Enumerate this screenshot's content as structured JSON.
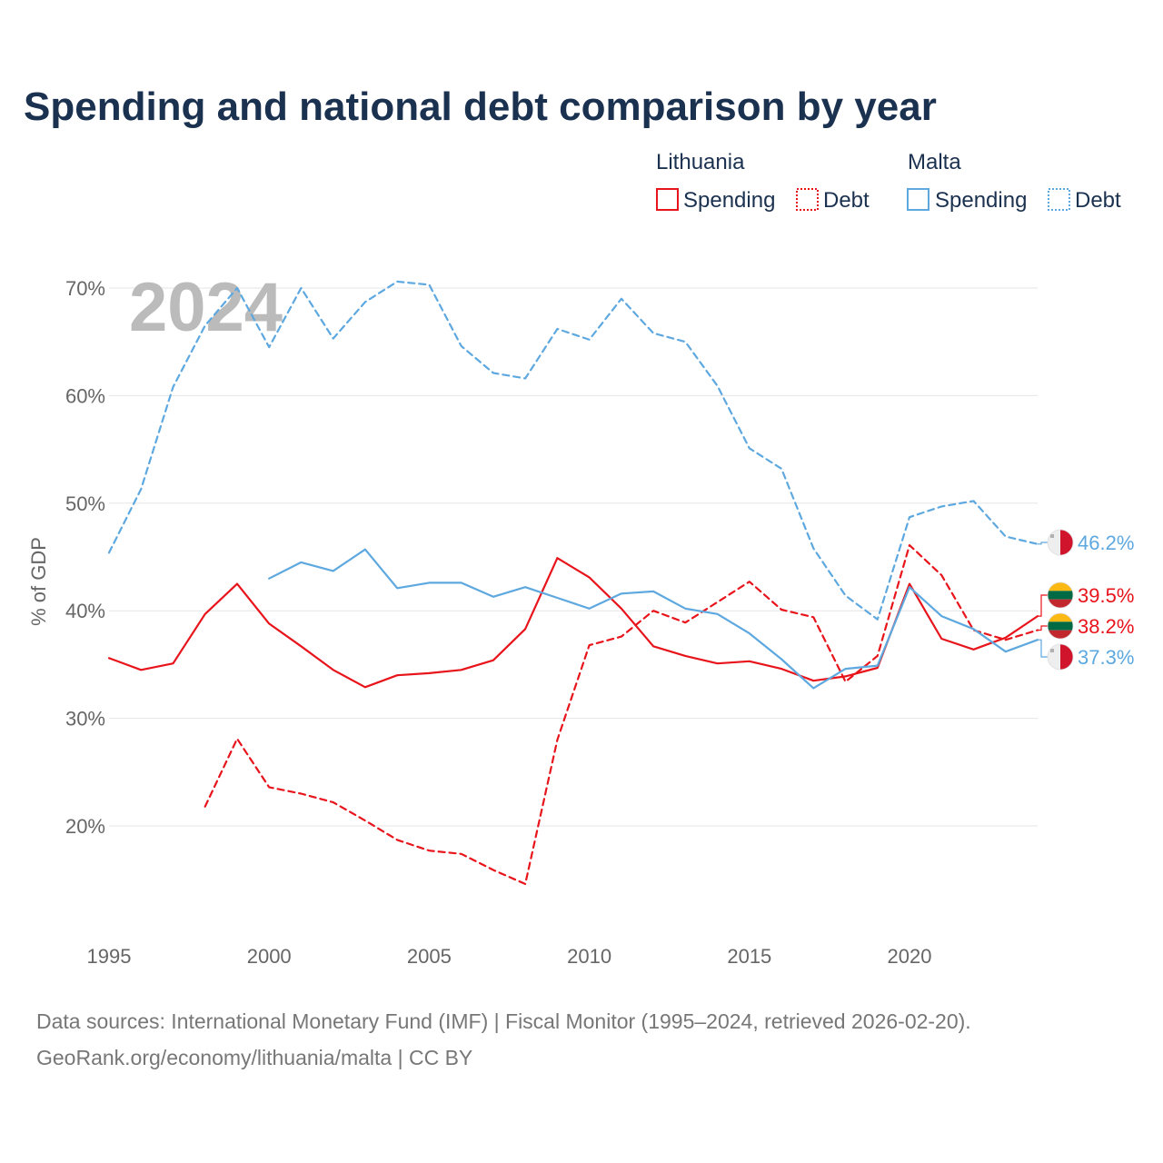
{
  "chart_data": {
    "type": "line",
    "title": "Spending and national debt comparison by year",
    "ylabel": "% of GDP",
    "xlabel": "",
    "year_label": "2024",
    "xlim": [
      1995,
      2024
    ],
    "ylim": [
      10,
      72
    ],
    "y_ticks": [
      20,
      30,
      40,
      50,
      60,
      70
    ],
    "y_tick_labels": [
      "20%",
      "30%",
      "40%",
      "50%",
      "60%",
      "70%"
    ],
    "x_ticks": [
      1995,
      2000,
      2005,
      2010,
      2015,
      2020
    ],
    "x_tick_labels": [
      "1995",
      "2000",
      "2005",
      "2010",
      "2015",
      "2020"
    ],
    "grid": true,
    "legend_placement": "top-right",
    "legend": {
      "groups": [
        {
          "name": "Lithuania",
          "items": [
            "Spending",
            "Debt"
          ]
        },
        {
          "name": "Malta",
          "items": [
            "Spending",
            "Debt"
          ]
        }
      ]
    },
    "series": [
      {
        "key": "lt-spending",
        "country": "Lithuania",
        "name": "Spending",
        "color": "#e8141b",
        "dashed": false,
        "x": [
          1995,
          1996,
          1997,
          1998,
          1999,
          2000,
          2001,
          2002,
          2003,
          2004,
          2005,
          2006,
          2007,
          2008,
          2009,
          2010,
          2011,
          2012,
          2013,
          2014,
          2015,
          2016,
          2017,
          2018,
          2019,
          2020,
          2021,
          2022,
          2023,
          2024
        ],
        "values": [
          35.6,
          34.5,
          35.1,
          39.7,
          42.5,
          38.8,
          36.7,
          34.5,
          32.9,
          34.0,
          34.2,
          34.5,
          35.4,
          38.3,
          44.9,
          43.1,
          40.2,
          36.7,
          35.8,
          35.1,
          35.3,
          34.6,
          33.5,
          33.9,
          34.7,
          42.5,
          37.4,
          36.4,
          37.5,
          39.5
        ],
        "end_label": "39.5%"
      },
      {
        "key": "lt-debt",
        "country": "Lithuania",
        "name": "Debt",
        "color": "#e8141b",
        "dashed": true,
        "x": [
          1998,
          1999,
          2000,
          2001,
          2002,
          2003,
          2004,
          2005,
          2006,
          2007,
          2008,
          2009,
          2010,
          2011,
          2012,
          2013,
          2014,
          2015,
          2016,
          2017,
          2018,
          2019,
          2020,
          2021,
          2022,
          2023,
          2024
        ],
        "values": [
          21.8,
          28.1,
          23.6,
          23.0,
          22.2,
          20.5,
          18.7,
          17.7,
          17.4,
          15.9,
          14.6,
          28.0,
          36.8,
          37.6,
          40.0,
          38.9,
          40.8,
          42.7,
          40.1,
          39.4,
          33.4,
          35.8,
          46.1,
          43.3,
          38.2,
          37.3,
          38.2
        ],
        "end_label": "38.2%"
      },
      {
        "key": "mt-spending",
        "country": "Malta",
        "name": "Spending",
        "color": "#5ea8e0",
        "dashed": false,
        "x": [
          2000,
          2001,
          2002,
          2003,
          2004,
          2005,
          2006,
          2007,
          2008,
          2009,
          2010,
          2011,
          2012,
          2013,
          2014,
          2015,
          2016,
          2017,
          2018,
          2019,
          2020,
          2021,
          2022,
          2023,
          2024
        ],
        "values": [
          43.0,
          44.5,
          43.7,
          45.7,
          42.1,
          42.6,
          42.6,
          41.3,
          42.2,
          41.2,
          40.2,
          41.6,
          41.8,
          40.2,
          39.7,
          37.9,
          35.5,
          32.8,
          34.6,
          34.9,
          42.2,
          39.5,
          38.3,
          36.2,
          37.3
        ],
        "end_label": "37.3%"
      },
      {
        "key": "mt-debt",
        "country": "Malta",
        "name": "Debt",
        "color": "#5ea8e0",
        "dashed": true,
        "x": [
          1995,
          1996,
          1997,
          1998,
          1999,
          2000,
          2001,
          2002,
          2003,
          2004,
          2005,
          2006,
          2007,
          2008,
          2009,
          2010,
          2011,
          2012,
          2013,
          2014,
          2015,
          2016,
          2017,
          2018,
          2019,
          2020,
          2021,
          2022,
          2023,
          2024
        ],
        "values": [
          45.4,
          51.3,
          60.8,
          66.5,
          70.0,
          64.5,
          70.0,
          65.3,
          68.7,
          70.6,
          70.3,
          64.6,
          62.1,
          61.6,
          66.2,
          65.2,
          69.0,
          65.8,
          65.0,
          60.9,
          55.1,
          53.2,
          45.8,
          41.4,
          39.2,
          48.7,
          49.7,
          50.2,
          46.9,
          46.2
        ],
        "end_label": "46.2%"
      }
    ],
    "source_lines": [
      "Data sources: International Monetary Fund (IMF) | Fiscal Monitor (1995–2024, retrieved 2026-02-20).",
      "GeoRank.org/economy/lithuania/malta | CC BY"
    ]
  },
  "colors": {
    "lithuania": "#e8141b",
    "malta": "#5ea8e0",
    "title": "#1b3150",
    "grid": "#e6e6e6",
    "tick": "#666666"
  },
  "icons": {
    "lithuania": "lithuania-flag-icon",
    "malta": "malta-flag-icon"
  }
}
